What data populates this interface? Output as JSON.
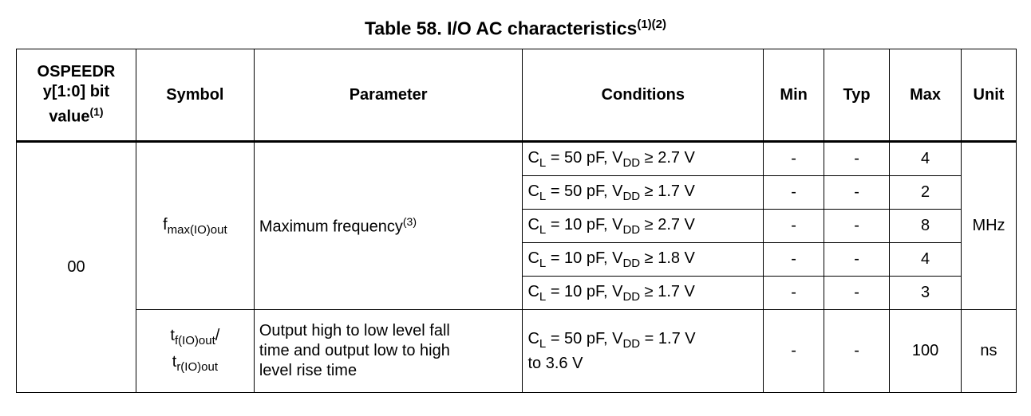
{
  "title": {
    "text": "Table 58. I/O AC characteristics",
    "notes": "(1)(2)"
  },
  "headers": {
    "ospeed": {
      "line1": "OSPEEDR",
      "line2": "y[1:0] bit",
      "line3": "value",
      "note": "(1)"
    },
    "symbol": "Symbol",
    "parameter": "Parameter",
    "conditions": "Conditions",
    "min": "Min",
    "typ": "Typ",
    "max": "Max",
    "unit": "Unit"
  },
  "group": {
    "ospeed_value": "00",
    "fmax": {
      "symbol_main": "f",
      "symbol_sub": "max(IO)out",
      "parameter": "Maximum frequency",
      "parameter_note": "(3)",
      "unit": "MHz",
      "rows": [
        {
          "cl": "C",
          "cl_sub": "L",
          "cl_val": " = 50 pF, V",
          "vdd_sub": "DD",
          "vdd_val": " ≥ 2.7 V",
          "min": "-",
          "typ": "-",
          "max": "4"
        },
        {
          "cl": "C",
          "cl_sub": "L",
          "cl_val": " = 50 pF, V",
          "vdd_sub": "DD",
          "vdd_val": " ≥ 1.7 V",
          "min": "-",
          "typ": "-",
          "max": "2"
        },
        {
          "cl": "C",
          "cl_sub": "L",
          "cl_val": " = 10 pF, V",
          "vdd_sub": "DD",
          "vdd_val": " ≥ 2.7 V",
          "min": "-",
          "typ": "-",
          "max": "8"
        },
        {
          "cl": "C",
          "cl_sub": "L",
          "cl_val": " = 10 pF, V",
          "vdd_sub": "DD",
          "vdd_val": " ≥ 1.8 V",
          "min": "-",
          "typ": "-",
          "max": "4"
        },
        {
          "cl": "C",
          "cl_sub": "L",
          "cl_val": " = 10 pF, V",
          "vdd_sub": "DD",
          "vdd_val": " ≥ 1.7 V",
          "min": "-",
          "typ": "-",
          "max": "3"
        }
      ]
    },
    "tf": {
      "sym1_main": "t",
      "sym1_sub": "f(IO)out",
      "sym1_slash": "/",
      "sym2_main": "t",
      "sym2_sub": "r(IO)out",
      "param_line1": "Output high to low level fall",
      "param_line2": "time and output low to high",
      "param_line3": "level rise time",
      "cond_cl": "C",
      "cond_cl_sub": "L",
      "cond_mid": " = 50 pF, V",
      "cond_vdd_sub": "DD",
      "cond_tail": " = 1.7 V",
      "cond_line2": "to 3.6 V",
      "min": "-",
      "typ": "-",
      "max": "100",
      "unit": "ns"
    }
  }
}
